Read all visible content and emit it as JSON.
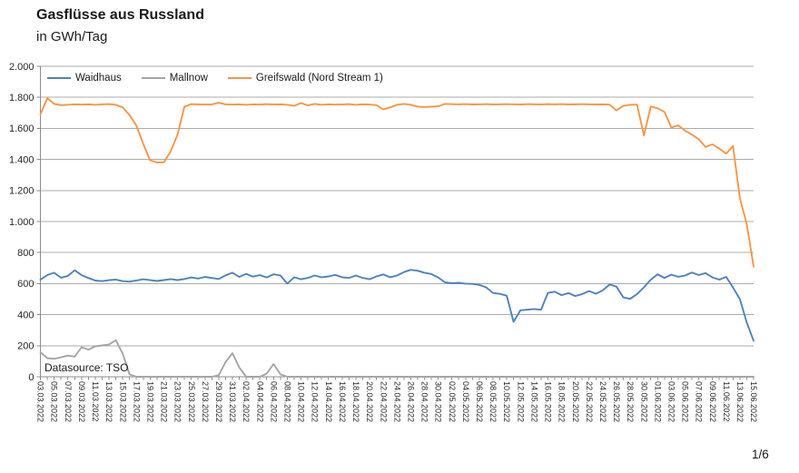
{
  "page": {
    "title": "Gasflüsse aus Russland",
    "subtitle": "in GWh/Tag",
    "datasource_note": "Datasource: TSO",
    "page_indicator": "1/6"
  },
  "colors": {
    "waidhaus_blue": "#4F81BD",
    "mallnow_gray": "#A5A5A5",
    "greifswald_orange": "#F79646",
    "gridline": "#ABABAB",
    "axis": "#8C8C8C",
    "tick_text": "#262626"
  },
  "chart_data": {
    "type": "line",
    "title": "Gasflüsse aus Russland",
    "ylabel": "GWh/Tag",
    "xlabel": "",
    "ylim": [
      0,
      2000
    ],
    "grid": "horizontal",
    "legend_position": "top-left-inside",
    "x_label_every": 2,
    "y_ticks": [
      {
        "value": 0,
        "label": "0"
      },
      {
        "value": 200,
        "label": "200"
      },
      {
        "value": 400,
        "label": "400"
      },
      {
        "value": 600,
        "label": "600"
      },
      {
        "value": 800,
        "label": "800"
      },
      {
        "value": 1000,
        "label": "1.000"
      },
      {
        "value": 1200,
        "label": "1.200"
      },
      {
        "value": 1400,
        "label": "1.400"
      },
      {
        "value": 1600,
        "label": "1.600"
      },
      {
        "value": 1800,
        "label": "1.800"
      },
      {
        "value": 2000,
        "label": "2.000"
      }
    ],
    "dates": [
      "03.03.2022",
      "04.03.2022",
      "05.03.2022",
      "06.03.2022",
      "07.03.2022",
      "08.03.2022",
      "09.03.2022",
      "10.03.2022",
      "11.03.2022",
      "12.03.2022",
      "13.03.2022",
      "14.03.2022",
      "15.03.2022",
      "16.03.2022",
      "17.03.2022",
      "18.03.2022",
      "19.03.2022",
      "20.03.2022",
      "21.03.2022",
      "22.03.2022",
      "23.03.2022",
      "24.03.2022",
      "25.03.2022",
      "26.03.2022",
      "27.03.2022",
      "28.03.2022",
      "29.03.2022",
      "30.03.2022",
      "31.03.2022",
      "01.04.2022",
      "02.04.2022",
      "03.04.2022",
      "04.04.2022",
      "05.04.2022",
      "06.04.2022",
      "07.04.2022",
      "08.04.2022",
      "09.04.2022",
      "10.04.2022",
      "11.04.2022",
      "12.04.2022",
      "13.04.2022",
      "14.04.2022",
      "15.04.2022",
      "16.04.2022",
      "17.04.2022",
      "18.04.2022",
      "19.04.2022",
      "20.04.2022",
      "21.04.2022",
      "22.04.2022",
      "23.04.2022",
      "24.04.2022",
      "25.04.2022",
      "26.04.2022",
      "27.04.2022",
      "28.04.2022",
      "29.04.2022",
      "30.04.2022",
      "01.05.2022",
      "02.05.2022",
      "03.05.2022",
      "04.05.2022",
      "05.05.2022",
      "06.05.2022",
      "07.05.2022",
      "08.05.2022",
      "09.05.2022",
      "10.05.2022",
      "11.05.2022",
      "12.05.2022",
      "13.05.2022",
      "14.05.2022",
      "15.05.2022",
      "16.05.2022",
      "17.05.2022",
      "18.05.2022",
      "19.05.2022",
      "20.05.2022",
      "21.05.2022",
      "22.05.2022",
      "23.05.2022",
      "24.05.2022",
      "25.05.2022",
      "26.05.2022",
      "27.05.2022",
      "28.05.2022",
      "29.05.2022",
      "30.05.2022",
      "31.05.2022",
      "01.06.2022",
      "02.06.2022",
      "03.06.2022",
      "04.06.2022",
      "05.06.2022",
      "06.06.2022",
      "07.06.2022",
      "08.06.2022",
      "09.06.2022",
      "10.06.2022",
      "11.06.2022",
      "12.06.2022",
      "13.06.2022",
      "14.06.2022",
      "15.06.2022"
    ],
    "series": [
      {
        "name": "Waidhaus",
        "color": "#4F81BD",
        "values": [
          625,
          655,
          670,
          638,
          650,
          686,
          655,
          636,
          620,
          616,
          622,
          626,
          616,
          613,
          620,
          628,
          622,
          617,
          623,
          629,
          623,
          630,
          640,
          633,
          643,
          636,
          630,
          653,
          670,
          643,
          663,
          645,
          655,
          640,
          660,
          652,
          600,
          641,
          628,
          637,
          652,
          641,
          646,
          656,
          641,
          637,
          652,
          637,
          628,
          646,
          659,
          641,
          652,
          674,
          689,
          683,
          670,
          662,
          640,
          608,
          603,
          605,
          600,
          598,
          592,
          576,
          540,
          534,
          522,
          354,
          428,
          432,
          436,
          432,
          540,
          548,
          526,
          539,
          520,
          533,
          552,
          535,
          557,
          594,
          581,
          511,
          502,
          533,
          576,
          625,
          660,
          637,
          658,
          644,
          652,
          672,
          655,
          668,
          640,
          626,
          643,
          575,
          500,
          350,
          232
        ]
      },
      {
        "name": "Mallnow",
        "color": "#A5A5A5",
        "values": [
          158,
          120,
          116,
          125,
          136,
          130,
          190,
          175,
          196,
          202,
          208,
          235,
          150,
          15,
          0,
          0,
          0,
          0,
          0,
          0,
          0,
          0,
          0,
          0,
          0,
          0,
          10,
          95,
          152,
          60,
          0,
          0,
          0,
          20,
          82,
          15,
          0,
          0,
          0,
          0,
          0,
          0,
          0,
          0,
          0,
          0,
          0,
          0,
          0,
          0,
          0,
          0,
          0,
          0,
          0,
          0,
          0,
          0,
          0,
          0,
          0,
          0,
          0,
          0,
          0,
          0,
          0,
          0,
          0,
          0,
          0,
          0,
          0,
          0,
          0,
          0,
          0,
          0,
          0,
          0,
          0,
          0,
          0,
          0,
          0,
          0,
          0,
          0,
          0,
          0,
          0,
          0,
          0,
          0,
          0,
          0,
          0,
          0,
          0,
          0,
          0,
          0,
          0,
          0,
          0
        ]
      },
      {
        "name": "Greifswald (Nord Stream 1)",
        "color": "#F79646",
        "values": [
          1690,
          1795,
          1758,
          1750,
          1752,
          1755,
          1753,
          1755,
          1752,
          1755,
          1756,
          1752,
          1735,
          1686,
          1618,
          1500,
          1395,
          1380,
          1382,
          1452,
          1560,
          1740,
          1756,
          1755,
          1753,
          1755,
          1765,
          1755,
          1753,
          1755,
          1752,
          1755,
          1753,
          1756,
          1754,
          1755,
          1752,
          1745,
          1763,
          1748,
          1758,
          1752,
          1755,
          1753,
          1754,
          1756,
          1752,
          1755,
          1753,
          1750,
          1722,
          1735,
          1752,
          1758,
          1752,
          1740,
          1738,
          1740,
          1742,
          1758,
          1756,
          1755,
          1756,
          1754,
          1755,
          1756,
          1754,
          1755,
          1756,
          1755,
          1754,
          1756,
          1755,
          1754,
          1756,
          1755,
          1756,
          1754,
          1755,
          1756,
          1755,
          1754,
          1755,
          1753,
          1715,
          1745,
          1752,
          1753,
          1554,
          1741,
          1729,
          1706,
          1605,
          1620,
          1585,
          1560,
          1530,
          1480,
          1497,
          1470,
          1437,
          1487,
          1150,
          985,
          710
        ]
      }
    ]
  }
}
